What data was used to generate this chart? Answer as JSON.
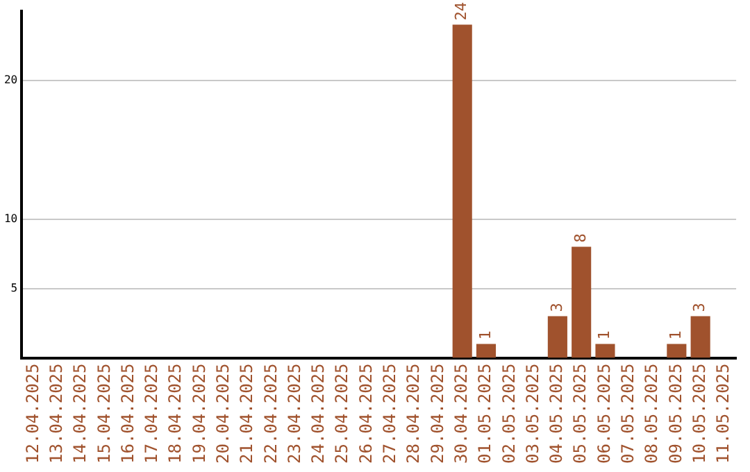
{
  "chart_data": {
    "type": "bar",
    "categories": [
      "12.04.2025",
      "13.04.2025",
      "14.04.2025",
      "15.04.2025",
      "16.04.2025",
      "17.04.2025",
      "18.04.2025",
      "19.04.2025",
      "20.04.2025",
      "21.04.2025",
      "22.04.2025",
      "23.04.2025",
      "24.04.2025",
      "25.04.2025",
      "26.04.2025",
      "27.04.2025",
      "28.04.2025",
      "29.04.2025",
      "30.04.2025",
      "01.05.2025",
      "02.05.2025",
      "03.05.2025",
      "04.05.2025",
      "05.05.2025",
      "06.05.2025",
      "07.05.2025",
      "08.05.2025",
      "09.05.2025",
      "10.05.2025",
      "11.05.2025"
    ],
    "values": [
      0,
      0,
      0,
      0,
      0,
      0,
      0,
      0,
      0,
      0,
      0,
      0,
      0,
      0,
      0,
      0,
      0,
      0,
      24,
      1,
      0,
      0,
      3,
      8,
      1,
      0,
      0,
      1,
      3,
      0
    ],
    "value_labels": [
      null,
      null,
      null,
      null,
      null,
      null,
      null,
      null,
      null,
      null,
      null,
      null,
      null,
      null,
      null,
      null,
      null,
      null,
      "24",
      "1",
      null,
      null,
      "3",
      "8",
      "1",
      null,
      null,
      "1",
      "3",
      null
    ],
    "color": "#a0522d",
    "ylim": [
      0,
      25
    ],
    "yticks": [
      5,
      10,
      20
    ],
    "grid": "y",
    "legend": false
  }
}
